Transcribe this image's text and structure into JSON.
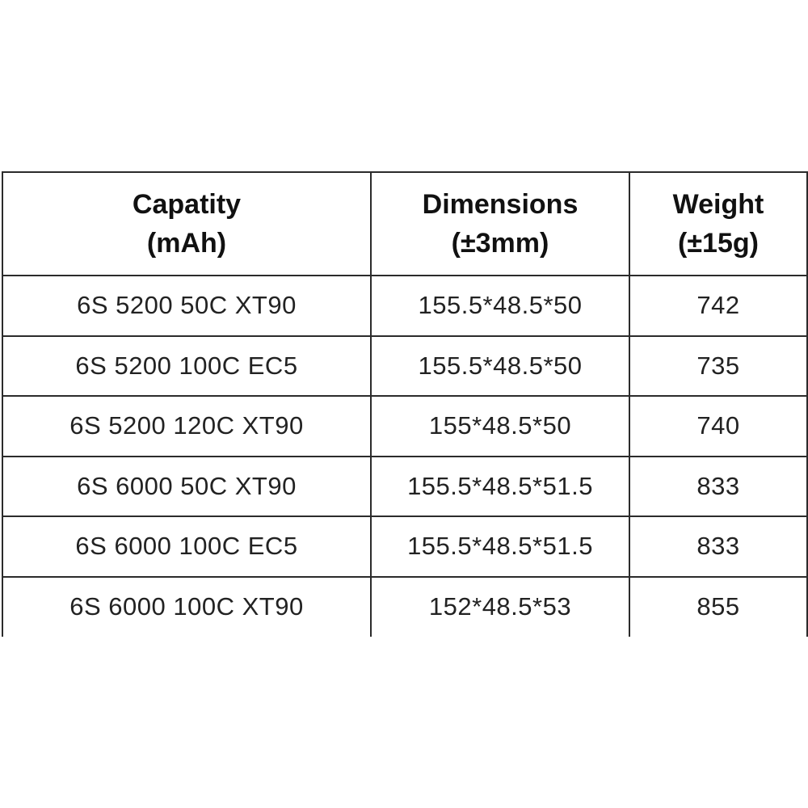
{
  "table": {
    "headers": [
      {
        "line1": "Capatity",
        "line2": "(mAh)"
      },
      {
        "line1": "Dimensions",
        "line2": "(±3mm)"
      },
      {
        "line1": "Weight",
        "line2": "(±15g)"
      }
    ],
    "rows": [
      [
        "6S 5200 50C XT90",
        "155.5*48.5*50",
        "742"
      ],
      [
        "6S 5200 100C EC5",
        "155.5*48.5*50",
        "735"
      ],
      [
        "6S 5200 120C XT90",
        "155*48.5*50",
        "740"
      ],
      [
        "6S 6000 50C XT90",
        "155.5*48.5*51.5",
        "833"
      ],
      [
        "6S 6000 100C EC5",
        "155.5*48.5*51.5",
        "833"
      ],
      [
        "6S 6000 100C XT90",
        "152*48.5*53",
        "855"
      ]
    ]
  }
}
